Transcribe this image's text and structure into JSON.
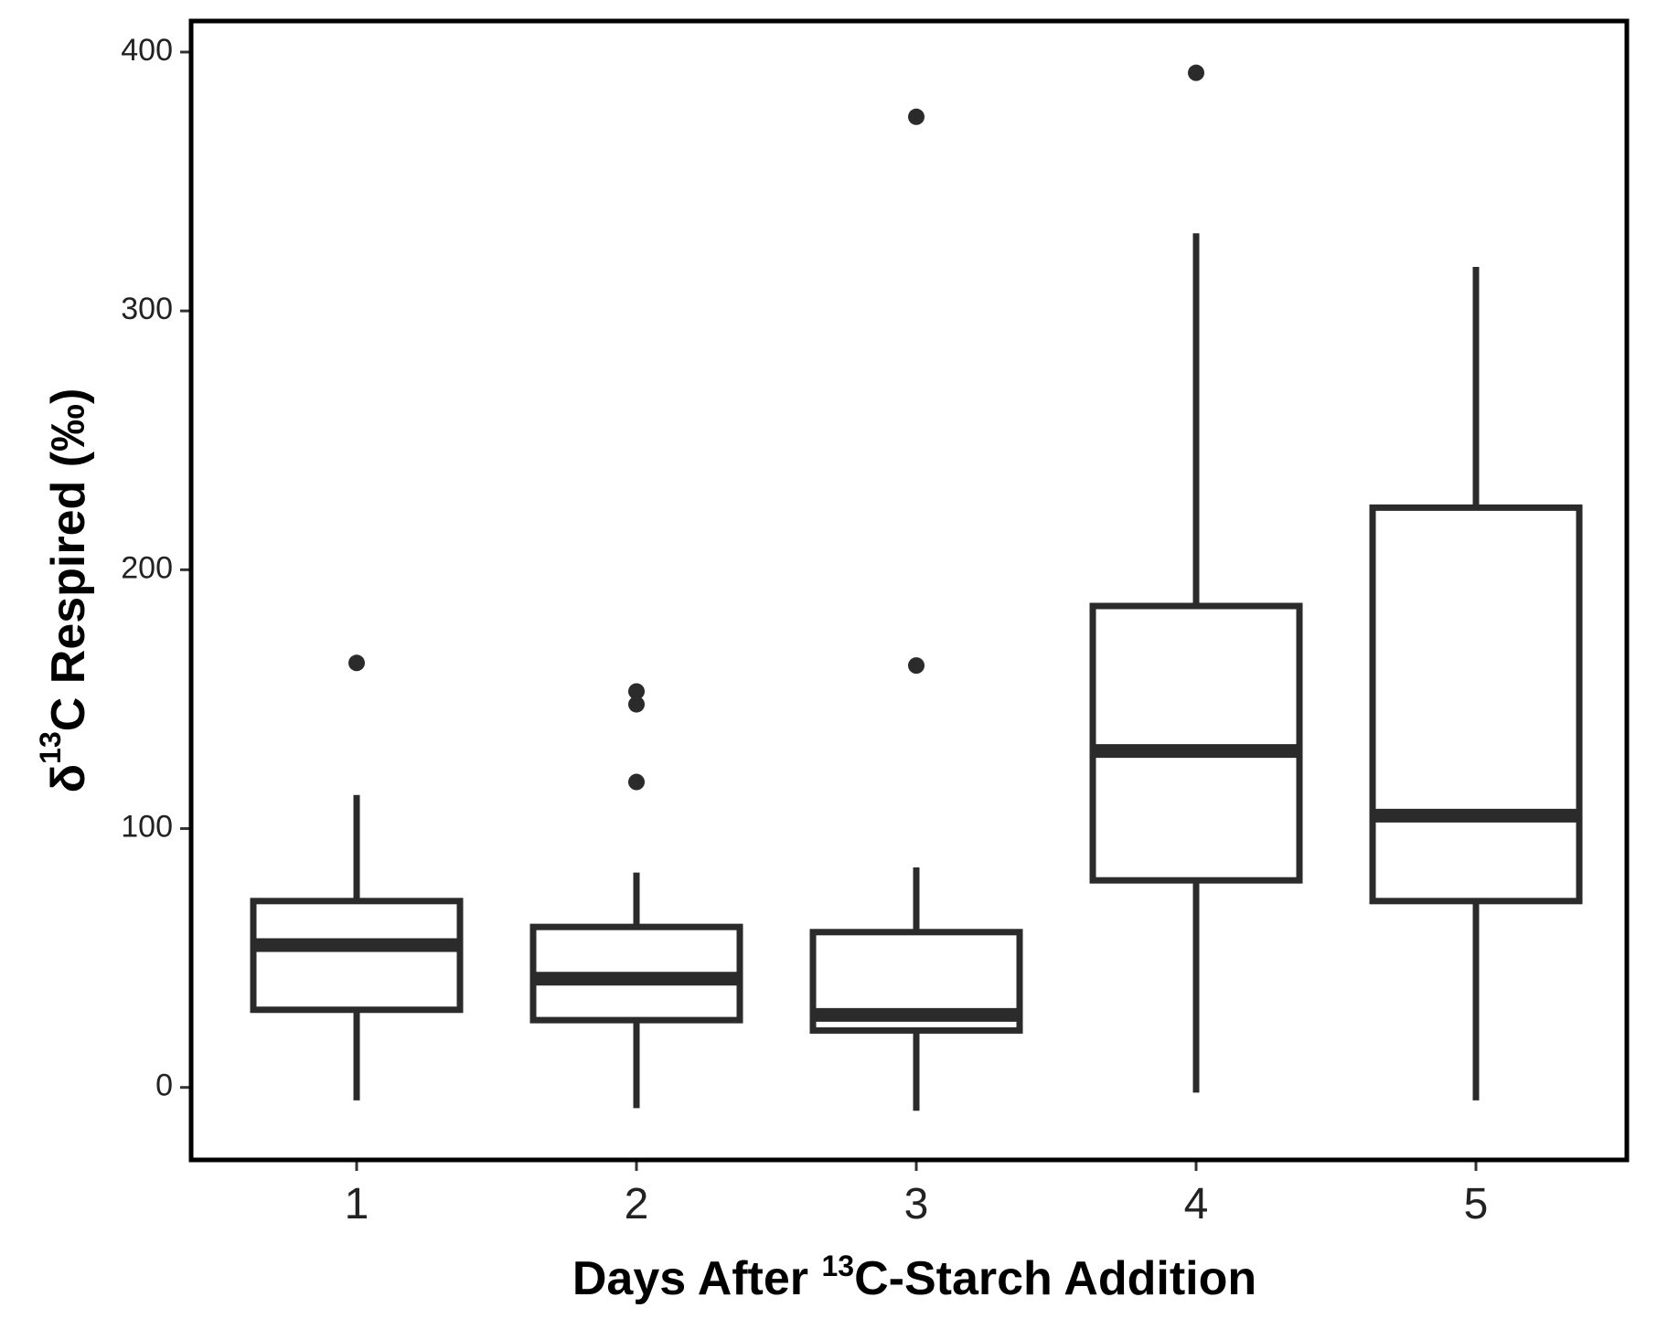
{
  "chart_data": {
    "type": "boxplot",
    "title": "",
    "xlabel": {
      "before": "Days After ",
      "sup": "13",
      "after": "C-Starch Addition"
    },
    "ylabel": {
      "before": "δ",
      "sup": "13",
      "after": "C Respired (‰)"
    },
    "categories": [
      "1",
      "2",
      "3",
      "4",
      "5"
    ],
    "ylim": [
      -28,
      412
    ],
    "yticks": [
      0,
      100,
      200,
      300,
      400
    ],
    "grid": false,
    "legend": "none",
    "colors": {
      "box_stroke": "#2b2b2b",
      "outlier": "#2b2b2b",
      "panel_border": "#000000"
    },
    "boxes": [
      {
        "category": "1",
        "whisker_low": -5,
        "q1": 30,
        "median": 55,
        "q3": 72,
        "whisker_high": 113,
        "outliers": [
          164
        ]
      },
      {
        "category": "2",
        "whisker_low": -8,
        "q1": 26,
        "median": 42,
        "q3": 62,
        "whisker_high": 83,
        "outliers": [
          153,
          148,
          118
        ]
      },
      {
        "category": "3",
        "whisker_low": -9,
        "q1": 22,
        "median": 28,
        "q3": 60,
        "whisker_high": 85,
        "outliers": [
          375,
          163
        ]
      },
      {
        "category": "4",
        "whisker_low": -2,
        "q1": 80,
        "median": 130,
        "q3": 186,
        "whisker_high": 330,
        "outliers": [
          392
        ]
      },
      {
        "category": "5",
        "whisker_low": -5,
        "q1": 72,
        "median": 105,
        "q3": 224,
        "whisker_high": 317,
        "outliers": []
      }
    ]
  }
}
